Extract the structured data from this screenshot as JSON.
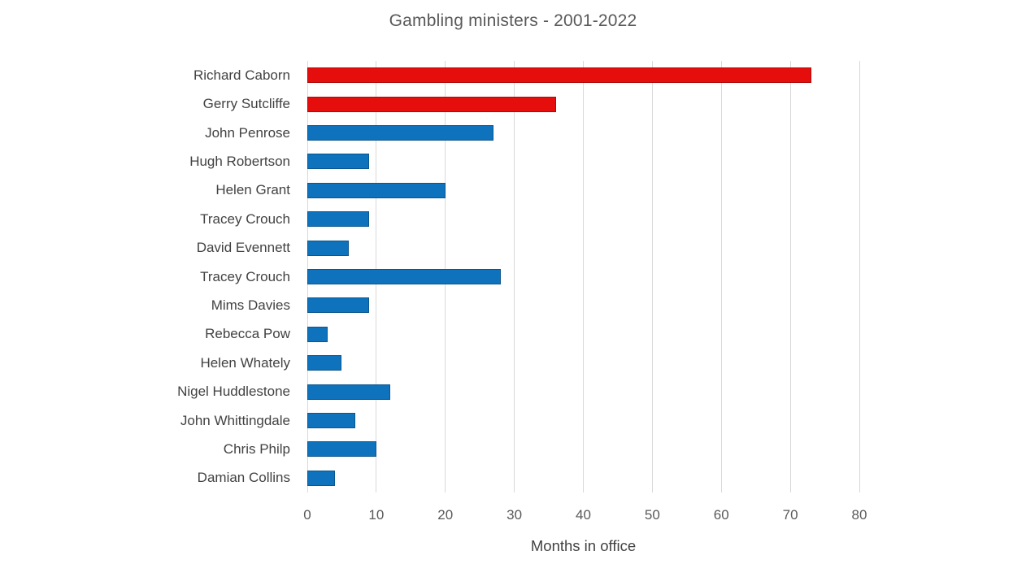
{
  "chart_data": {
    "type": "bar",
    "orientation": "horizontal",
    "title": "Gambling ministers - 2001-2022",
    "xlabel": "Months in office",
    "ylabel": "",
    "xlim": [
      0,
      80
    ],
    "xticks": [
      0,
      10,
      20,
      30,
      40,
      50,
      60,
      70,
      80
    ],
    "grid": true,
    "legend": "none",
    "categories": [
      "Richard Caborn",
      "Gerry Sutcliffe",
      "John Penrose",
      "Hugh Robertson",
      "Helen Grant",
      "Tracey Crouch",
      "David Evennett",
      "Tracey Crouch",
      "Mims Davies",
      "Rebecca Pow",
      "Helen Whately",
      "Nigel Huddlestone",
      "John Whittingdale",
      "Chris Philp",
      "Damian Collins"
    ],
    "values": [
      73,
      36,
      27,
      9,
      20,
      9,
      6,
      28,
      9,
      3,
      5,
      12,
      7,
      10,
      4
    ],
    "bar_color_keys": [
      "red",
      "red",
      "blue",
      "blue",
      "blue",
      "blue",
      "blue",
      "blue",
      "blue",
      "blue",
      "blue",
      "blue",
      "blue",
      "blue",
      "blue"
    ]
  },
  "colors": {
    "red": "#e60d0d",
    "red_border": "#ad0909",
    "blue": "#0e72bc",
    "blue_border": "#0a568e",
    "gridline": "#d9d9d9",
    "title_text": "#595959",
    "tick_text": "#595959",
    "label_text": "#424242"
  }
}
